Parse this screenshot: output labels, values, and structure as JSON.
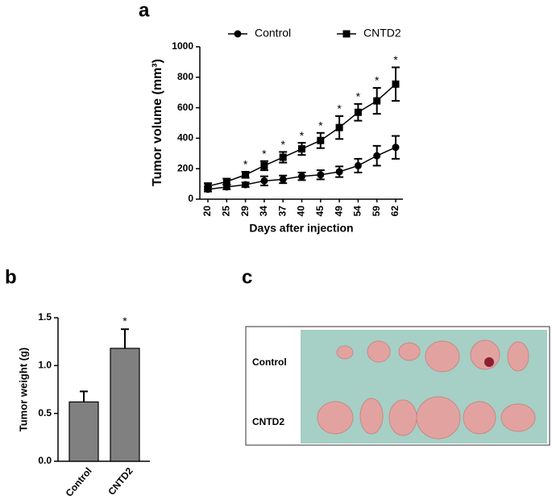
{
  "chart_data": [
    {
      "type": "line",
      "panel": "a",
      "y_label": "Tumor volume (mm³)",
      "x_label": "Days after injection",
      "categories": [
        "20",
        "25",
        "29",
        "34",
        "37",
        "40",
        "45",
        "49",
        "54",
        "59",
        "62"
      ],
      "series": [
        {
          "name": "Control",
          "color": "#000000",
          "marker": "circle",
          "values": [
            65,
            80,
            95,
            120,
            130,
            150,
            160,
            180,
            220,
            285,
            340
          ],
          "errors": [
            15,
            15,
            15,
            30,
            25,
            25,
            30,
            35,
            45,
            65,
            75
          ]
        },
        {
          "name": "CNTD2",
          "color": "#000000",
          "marker": "square",
          "values": [
            85,
            115,
            160,
            220,
            275,
            330,
            385,
            470,
            570,
            645,
            755
          ],
          "errors": [
            20,
            20,
            20,
            30,
            35,
            40,
            50,
            75,
            55,
            85,
            110
          ]
        }
      ],
      "annotations": [
        null,
        null,
        "*",
        "*",
        "*",
        "*",
        "*",
        "*",
        "*",
        "*",
        "*"
      ],
      "ylim": [
        0,
        1000
      ],
      "yticks": [
        0,
        200,
        400,
        600,
        800,
        1000
      ]
    },
    {
      "type": "bar",
      "panel": "b",
      "y_label": "Tumor weight (g)",
      "categories": [
        "Control",
        "CNTD2"
      ],
      "values": [
        0.62,
        1.18
      ],
      "errors": [
        0.11,
        0.2
      ],
      "color": "#808080",
      "annotations": [
        null,
        "*"
      ],
      "ylim": [
        0,
        1.5
      ],
      "yticks": [
        {
          "value": 0,
          "label": "0.0"
        },
        0.5,
        {
          "value": 1,
          "label": "1.0"
        },
        1.5
      ]
    },
    {
      "type": "image",
      "panel": "c",
      "row_labels": [
        "Control",
        "CNTD2"
      ]
    }
  ]
}
